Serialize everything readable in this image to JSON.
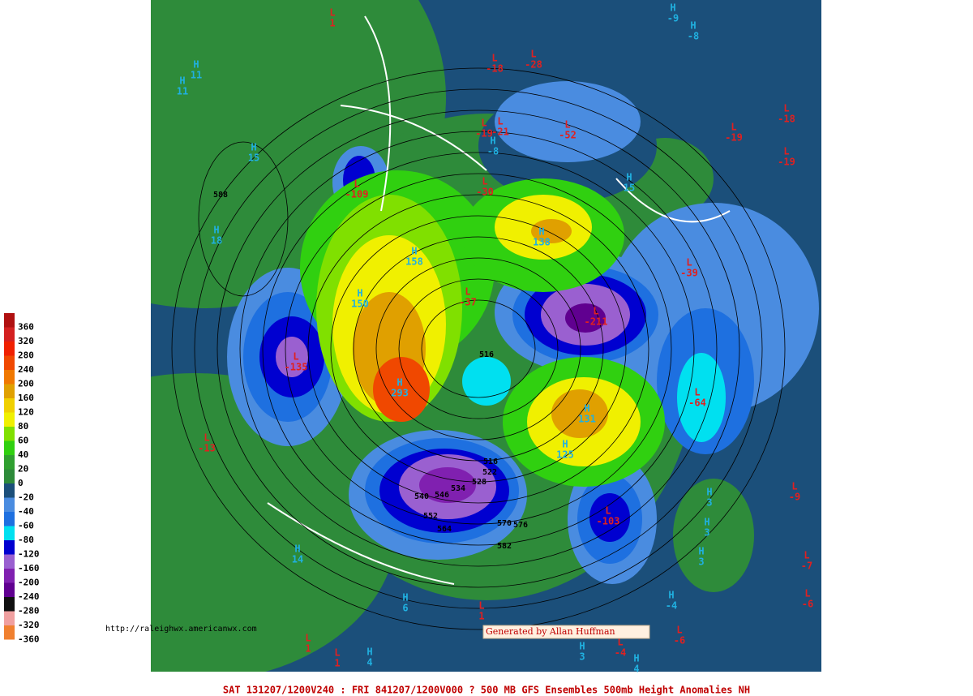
{
  "legend": [
    {
      "label": "360",
      "color": "#b01010"
    },
    {
      "label": "320",
      "color": "#d42020"
    },
    {
      "label": "280",
      "color": "#f02000"
    },
    {
      "label": "240",
      "color": "#f04800"
    },
    {
      "label": "200",
      "color": "#f07800"
    },
    {
      "label": "160",
      "color": "#e0a000"
    },
    {
      "label": "120",
      "color": "#f0d000"
    },
    {
      "label": "80",
      "color": "#f0f000"
    },
    {
      "label": "60",
      "color": "#80e000"
    },
    {
      "label": "40",
      "color": "#30d010"
    },
    {
      "label": "20",
      "color": "#30a030"
    },
    {
      "label": "0",
      "color": "#2e8b3a"
    },
    {
      "label": "-20",
      "color": "#1b4f7a"
    },
    {
      "label": "-40",
      "color": "#4a8ce0"
    },
    {
      "label": "-60",
      "color": "#1e70e0"
    },
    {
      "label": "-80",
      "color": "#00e0f0"
    },
    {
      "label": "-120",
      "color": "#0000d0"
    },
    {
      "label": "-160",
      "color": "#9a60d0"
    },
    {
      "label": "-200",
      "color": "#8020b0"
    },
    {
      "label": "-240",
      "color": "#600090"
    },
    {
      "label": "-280",
      "color": "#101010"
    },
    {
      "label": "-320",
      "color": "#f0a0a0"
    },
    {
      "label": "-360",
      "color": "#f08030"
    }
  ],
  "markers": [
    {
      "letter": "L",
      "value": "1"
    },
    {
      "letter": "L",
      "value": "-28"
    },
    {
      "letter": "L",
      "value": "-18"
    },
    {
      "letter": "H",
      "value": "-9"
    },
    {
      "letter": "H",
      "value": "-8"
    },
    {
      "letter": "H",
      "value": "11"
    },
    {
      "letter": "H",
      "value": "11"
    },
    {
      "letter": "H",
      "value": "15"
    },
    {
      "letter": "H",
      "value": "18"
    },
    {
      "letter": "L",
      "value": "-109"
    },
    {
      "letter": "L",
      "value": "-19"
    },
    {
      "letter": "L",
      "value": "-21"
    },
    {
      "letter": "H",
      "value": "-8"
    },
    {
      "letter": "L",
      "value": "-52"
    },
    {
      "letter": "L",
      "value": "-30"
    },
    {
      "letter": "H",
      "value": "15"
    },
    {
      "letter": "H",
      "value": "158"
    },
    {
      "letter": "H",
      "value": "138"
    },
    {
      "letter": "H",
      "value": "150"
    },
    {
      "letter": "L",
      "value": "-37"
    },
    {
      "letter": "L",
      "value": "-211"
    },
    {
      "letter": "L",
      "value": "-39"
    },
    {
      "letter": "L",
      "value": "-135"
    },
    {
      "letter": "H",
      "value": "293"
    },
    {
      "letter": "L",
      "value": "-64"
    },
    {
      "letter": "H",
      "value": "131"
    },
    {
      "letter": "H",
      "value": "125"
    },
    {
      "letter": "L",
      "value": "-13"
    },
    {
      "letter": "L",
      "value": "-103"
    },
    {
      "letter": "H",
      "value": "3"
    },
    {
      "letter": "H",
      "value": "3"
    },
    {
      "letter": "H",
      "value": "3"
    },
    {
      "letter": "L",
      "value": "-18"
    },
    {
      "letter": "L",
      "value": "-19"
    },
    {
      "letter": "L",
      "value": "-19"
    },
    {
      "letter": "L",
      "value": "-9"
    },
    {
      "letter": "L",
      "value": "-7"
    },
    {
      "letter": "L",
      "value": "-6"
    },
    {
      "letter": "L",
      "value": "-6"
    },
    {
      "letter": "H",
      "value": "14"
    },
    {
      "letter": "H",
      "value": "6"
    },
    {
      "letter": "L",
      "value": "1"
    },
    {
      "letter": "L",
      "value": "1"
    },
    {
      "letter": "H",
      "value": "4"
    },
    {
      "letter": "L",
      "value": "1"
    },
    {
      "letter": "H",
      "value": "3"
    },
    {
      "letter": "L",
      "value": "-4"
    },
    {
      "letter": "H",
      "value": "-4"
    },
    {
      "letter": "H",
      "value": "4"
    }
  ],
  "contours": [
    "588",
    "516",
    "516",
    "522",
    "528",
    "534",
    "540",
    "546",
    "552",
    "564",
    "570",
    "576",
    "582"
  ],
  "url": "http://raleighwx.americanwx.com",
  "credit": "Generated by Allan Huffman",
  "footer": "SAT 131207/1200V240 : FRI 841207/1200V000  ? 500 MB GFS Ensembles 500mb Height Anomalies NH"
}
